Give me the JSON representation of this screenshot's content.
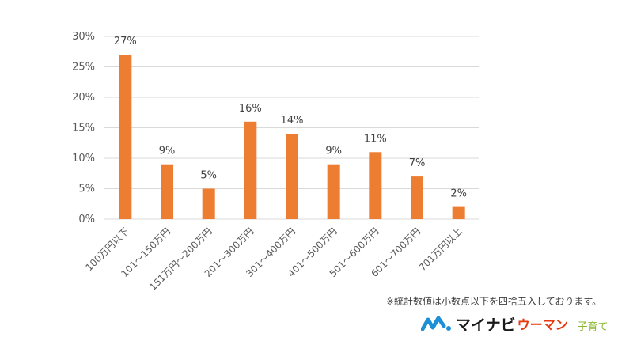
{
  "chart_data": {
    "type": "bar",
    "categories": [
      "100万円以下",
      "101～150万円",
      "151万円～200万円",
      "201～300万円",
      "301～400万円",
      "401～500万円",
      "501～600万円",
      "601～700万円",
      "701万円以上"
    ],
    "values": [
      27,
      9,
      5,
      16,
      14,
      9,
      11,
      7,
      2
    ],
    "data_labels": [
      "27%",
      "9%",
      "5%",
      "16%",
      "14%",
      "9%",
      "11%",
      "7%",
      "2%"
    ],
    "y_ticks": [
      "0%",
      "5%",
      "10%",
      "15%",
      "20%",
      "25%",
      "30%"
    ],
    "ylim": [
      0,
      30
    ],
    "y_unit": "%",
    "grid": true,
    "legend": "none",
    "bar_color": "#ed7d31",
    "grid_color": "#d9d9d9"
  },
  "footnote": "※統計数値は小数点以下を四捨五入しております。",
  "branding": {
    "main": "マイナビ",
    "sub": "ウーマン",
    "tag": "子育て",
    "colors": {
      "mark_blue": "#1e8fd6",
      "sub_red": "#e8380d",
      "tag_green": "#8bb832"
    }
  }
}
